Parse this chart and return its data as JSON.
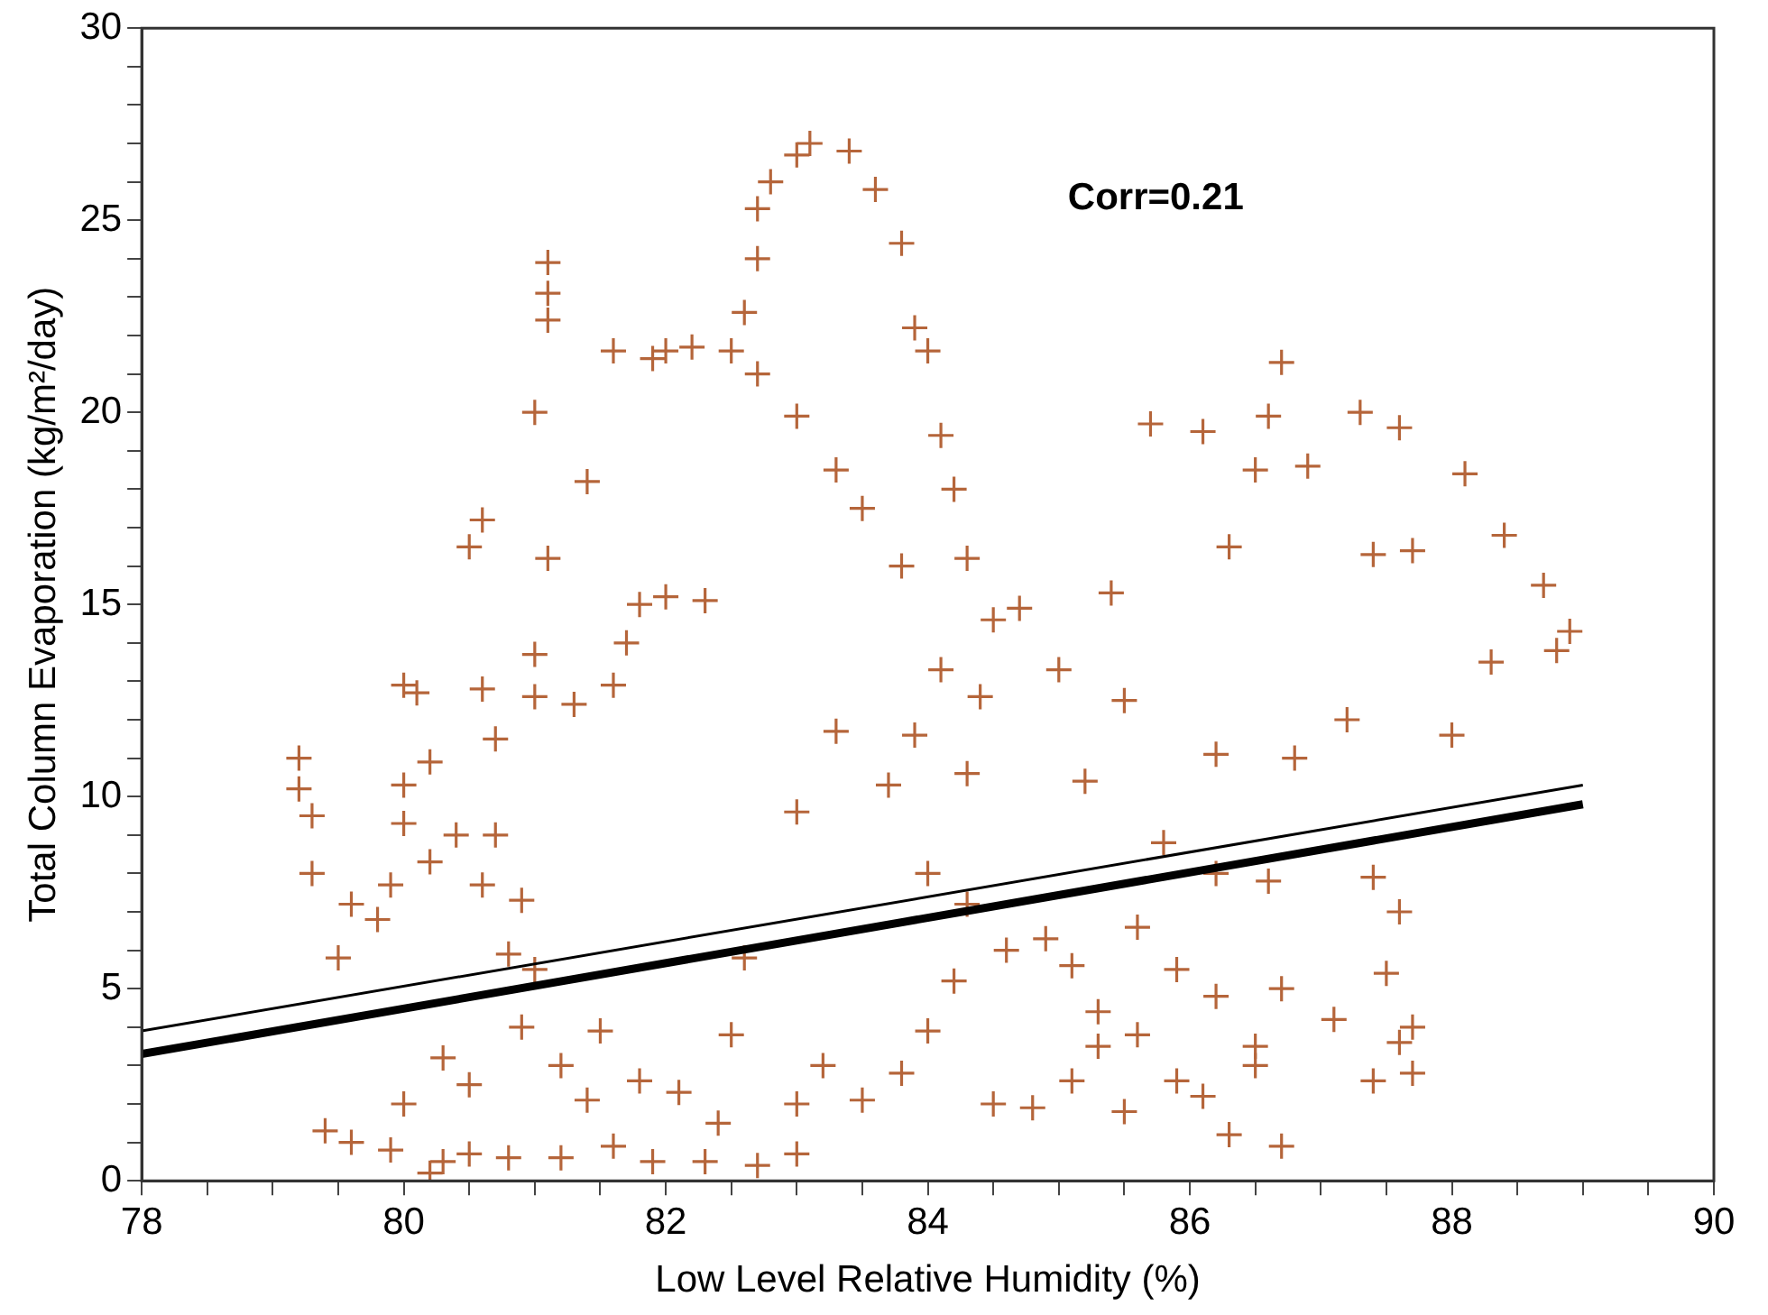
{
  "chart_data": {
    "type": "scatter",
    "xlabel": "Low Level Relative Humidity (%)",
    "ylabel": "Total Column Evaporation (kg/m²/day)",
    "annotations": [
      "Corr=0.21"
    ],
    "xlim": [
      78,
      90
    ],
    "ylim": [
      0,
      30
    ],
    "xticks": [
      78,
      {
        "value": 78.5,
        "label": null
      },
      {
        "value": 79,
        "label": null
      },
      {
        "value": 79.5,
        "label": null
      },
      80,
      {
        "value": 80.5,
        "label": null
      },
      {
        "value": 81,
        "label": null
      },
      {
        "value": 81.5,
        "label": null
      },
      82,
      {
        "value": 82.5,
        "label": null
      },
      {
        "value": 83,
        "label": null
      },
      {
        "value": 83.5,
        "label": null
      },
      84,
      {
        "value": 84.5,
        "label": null
      },
      {
        "value": 85,
        "label": null
      },
      {
        "value": 85.5,
        "label": null
      },
      86,
      {
        "value": 86.5,
        "label": null
      },
      {
        "value": 87,
        "label": null
      },
      {
        "value": 87.5,
        "label": null
      },
      88,
      {
        "value": 88.5,
        "label": null
      },
      {
        "value": 89,
        "label": null
      },
      {
        "value": 89.5,
        "label": null
      },
      90
    ],
    "yticks": [
      0,
      {
        "value": 1,
        "label": null
      },
      {
        "value": 2,
        "label": null
      },
      {
        "value": 3,
        "label": null
      },
      {
        "value": 4,
        "label": null
      },
      5,
      {
        "value": 6,
        "label": null
      },
      {
        "value": 7,
        "label": null
      },
      {
        "value": 8,
        "label": null
      },
      {
        "value": 9,
        "label": null
      },
      10,
      {
        "value": 11,
        "label": null
      },
      {
        "value": 12,
        "label": null
      },
      {
        "value": 13,
        "label": null
      },
      {
        "value": 14,
        "label": null
      },
      15,
      {
        "value": 16,
        "label": null
      },
      {
        "value": 17,
        "label": null
      },
      {
        "value": 18,
        "label": null
      },
      {
        "value": 19,
        "label": null
      },
      20,
      {
        "value": 21,
        "label": null
      },
      {
        "value": 22,
        "label": null
      },
      {
        "value": 23,
        "label": null
      },
      {
        "value": 24,
        "label": null
      },
      25,
      {
        "value": 26,
        "label": null
      },
      {
        "value": 27,
        "label": null
      },
      {
        "value": 28,
        "label": null
      },
      {
        "value": 29,
        "label": null
      },
      30
    ],
    "grid": false,
    "legend": false,
    "series": [
      {
        "marker": "cross",
        "color": "#b5653a",
        "x": [
          79.2,
          79.2,
          79.3,
          79.3,
          79.5,
          79.6,
          79.8,
          79.9,
          80.0,
          80.0,
          80.1,
          80.2,
          80.0,
          80.2,
          80.4,
          80.5,
          80.6,
          80.6,
          80.7,
          80.7,
          80.6,
          80.8,
          80.9,
          81.0,
          81.0,
          81.0,
          81.1,
          81.1,
          81.1,
          81.1,
          81.4,
          81.3,
          81.6,
          81.7,
          81.8,
          82.0,
          82.3,
          81.6,
          81.9,
          82.2,
          82.5,
          82.0,
          79.4,
          79.6,
          79.9,
          80.2,
          80.3,
          80.5,
          80.8,
          81.2,
          81.6,
          81.9,
          82.3,
          82.7,
          83.0,
          80.0,
          80.3,
          80.5,
          80.9,
          81.2,
          81.4,
          81.8,
          82.1,
          82.4,
          82.6,
          82.5,
          81.5,
          81.0,
          82.7,
          82.7,
          82.6,
          82.7,
          82.8,
          83.0,
          83.1,
          83.4,
          83.6,
          83.8,
          83.9,
          84.0,
          84.1,
          84.2,
          83.3,
          83.0,
          83.5,
          83.8,
          84.3,
          84.5,
          84.1,
          83.9,
          83.3,
          83.0,
          83.7,
          84.0,
          84.3,
          84.6,
          84.2,
          84.0,
          83.8,
          83.5,
          83.2,
          83.0,
          84.5,
          84.8,
          85.1,
          85.3,
          84.4,
          84.7,
          84.3,
          85.4,
          85.7,
          86.1,
          86.3,
          86.5,
          86.6,
          86.7,
          86.9,
          87.3,
          87.6,
          88.1,
          87.4,
          87.7,
          88.4,
          88.7,
          88.9,
          88.8,
          88.3,
          88.0,
          87.2,
          86.8,
          86.2,
          85.5,
          85.0,
          85.2,
          85.8,
          86.2,
          86.6,
          87.4,
          87.6,
          87.5,
          87.6,
          87.4,
          87.7,
          87.7,
          87.1,
          86.7,
          86.5,
          86.2,
          85.9,
          85.6,
          85.3,
          85.5,
          85.9,
          86.3,
          86.7,
          86.5,
          86.1,
          85.1,
          84.9,
          85.6
        ],
        "values": [
          11.0,
          10.2,
          9.5,
          8.0,
          5.8,
          7.2,
          6.8,
          7.7,
          9.3,
          12.9,
          12.7,
          10.9,
          10.3,
          8.3,
          9.0,
          16.5,
          17.2,
          12.8,
          11.5,
          9.0,
          7.7,
          5.9,
          7.3,
          12.6,
          13.7,
          20.0,
          23.9,
          23.1,
          22.4,
          16.2,
          18.2,
          12.4,
          12.9,
          14.0,
          15.0,
          15.2,
          15.1,
          21.6,
          21.4,
          21.7,
          21.6,
          21.6,
          1.3,
          1.0,
          0.8,
          0.2,
          0.5,
          0.7,
          0.6,
          0.6,
          0.9,
          0.5,
          0.5,
          0.4,
          0.7,
          2.0,
          3.2,
          2.5,
          4.0,
          3.0,
          2.1,
          2.6,
          2.3,
          1.5,
          5.8,
          3.8,
          3.9,
          5.5,
          25.3,
          24.0,
          22.6,
          21.0,
          26.0,
          26.7,
          27.0,
          26.8,
          25.8,
          24.4,
          22.2,
          21.6,
          19.4,
          18.0,
          18.5,
          19.9,
          17.5,
          16.0,
          16.2,
          14.6,
          13.3,
          11.6,
          11.7,
          9.6,
          10.3,
          8.0,
          7.2,
          6.0,
          5.2,
          3.9,
          2.8,
          2.1,
          3.0,
          2.0,
          2.0,
          1.9,
          2.6,
          3.5,
          12.6,
          14.9,
          10.6,
          15.3,
          19.7,
          19.5,
          16.5,
          18.5,
          19.9,
          21.3,
          18.6,
          20.0,
          19.6,
          18.4,
          16.3,
          16.4,
          16.8,
          15.5,
          14.3,
          13.8,
          13.5,
          11.6,
          12.0,
          11.0,
          11.1,
          12.5,
          13.3,
          10.4,
          8.8,
          8.0,
          7.8,
          7.9,
          7.0,
          5.4,
          3.6,
          2.6,
          2.8,
          4.0,
          4.2,
          5.0,
          3.5,
          4.8,
          5.5,
          3.8,
          4.4,
          1.8,
          2.6,
          1.2,
          0.9,
          3.0,
          2.2,
          5.6,
          6.3,
          6.6
        ]
      },
      {
        "type": "line",
        "marker": "none",
        "color": "#000000",
        "x": [
          78,
          89
        ],
        "values": [
          3.3,
          9.8
        ]
      },
      {
        "type": "line",
        "marker": "none",
        "color": "#000000",
        "x": [
          78,
          89
        ],
        "values": [
          3.9,
          10.3
        ]
      }
    ]
  }
}
